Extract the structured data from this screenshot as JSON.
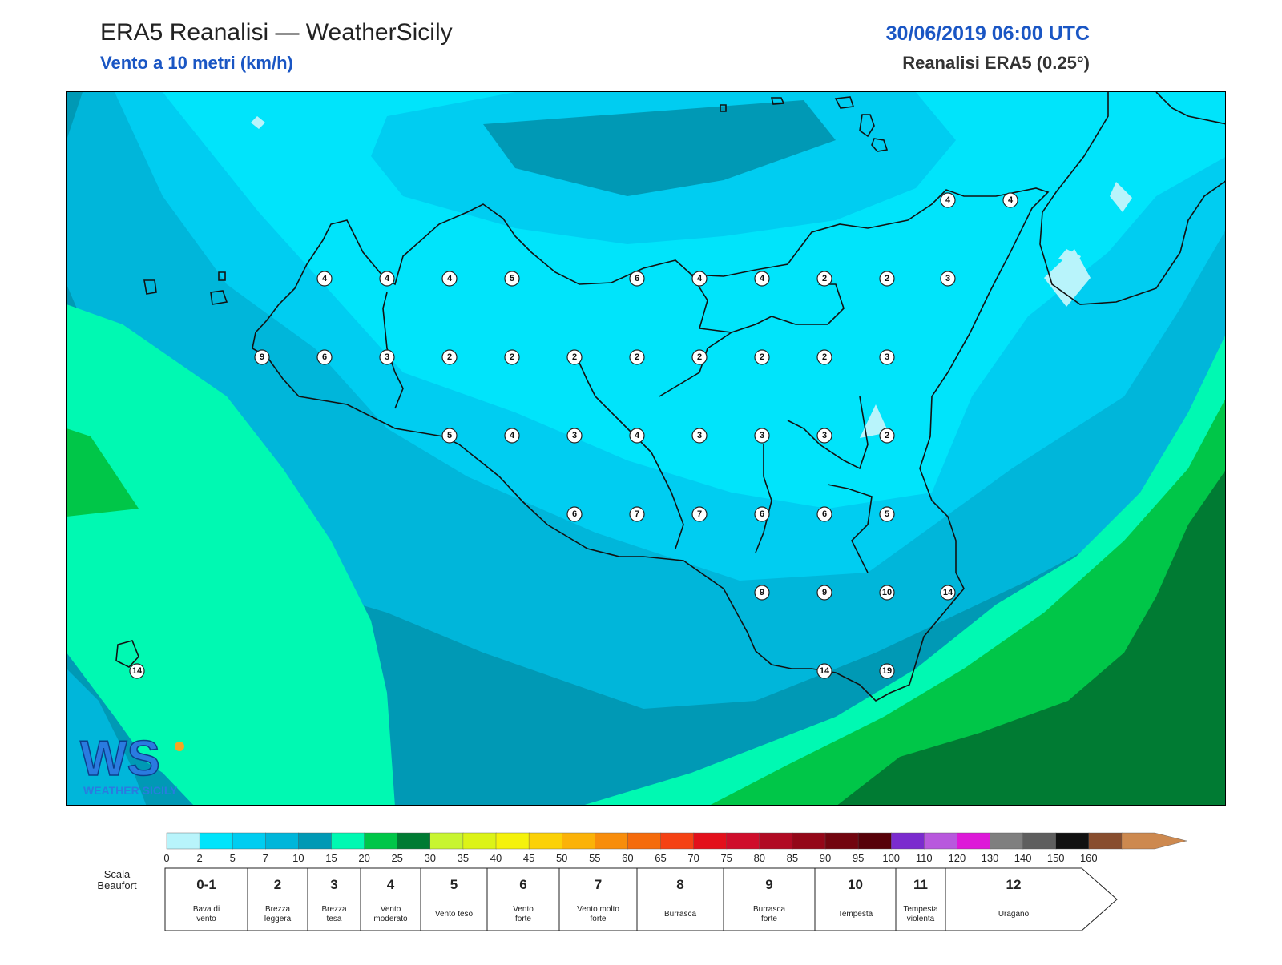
{
  "header": {
    "title": "ERA5 Reanalisi — WeatherSicily",
    "subtitle": "Vento a 10 metri (km/h)",
    "datetime": "30/06/2019 06:00 UTC",
    "model": "Reanalisi ERA5 (0.25°)"
  },
  "logo": {
    "text": "WS",
    "brand": "WEATHER SICILY"
  },
  "colors": {
    "c0": "#b8f4fb",
    "c2": "#00e4fb",
    "c5": "#00cdf1",
    "c7": "#00b6da",
    "c10": "#0099b5",
    "c15": "#00f9b2",
    "c20": "#00c648",
    "c25": "#007b33",
    "land": "#222222"
  },
  "station_values": [
    "4",
    "4",
    "4",
    "4",
    "4",
    "5",
    "6",
    "4",
    "4",
    "2",
    "2",
    "3",
    "9",
    "6",
    "3",
    "2",
    "2",
    "2",
    "2",
    "2",
    "2",
    "2",
    "3",
    "5",
    "4",
    "3",
    "4",
    "3",
    "3",
    "3",
    "2",
    "6",
    "7",
    "7",
    "6",
    "6",
    "5",
    "9",
    "9",
    "10",
    "14",
    "14",
    "14",
    "19"
  ],
  "legend": {
    "colors": [
      "#b8f4fb",
      "#00e4fb",
      "#00cdf1",
      "#00b6da",
      "#0099b5",
      "#00f9b2",
      "#00c648",
      "#007b33",
      "#c8f531",
      "#dcf317",
      "#f5f20c",
      "#fbd107",
      "#fbb208",
      "#f88d0b",
      "#f56b0c",
      "#f54214",
      "#e3101b",
      "#cf0d2b",
      "#b10a23",
      "#940718",
      "#72050f",
      "#570109",
      "#7b2bce",
      "#b858dd",
      "#dd19d8",
      "#7f7f7f",
      "#5e5e5e",
      "#111111",
      "#884d2e",
      "#cd894f"
    ],
    "ticks": [
      "0",
      "2",
      "5",
      "7",
      "10",
      "15",
      "20",
      "25",
      "30",
      "35",
      "40",
      "45",
      "50",
      "55",
      "60",
      "65",
      "70",
      "75",
      "80",
      "85",
      "90",
      "95",
      "100",
      "110",
      "120",
      "130",
      "140",
      "150",
      "160"
    ]
  },
  "beaufort": {
    "label_line1": "Scala",
    "label_line2": "Beaufort",
    "classes": [
      {
        "num": "0-1",
        "name1": "Bava di",
        "name2": "vento"
      },
      {
        "num": "2",
        "name1": "Brezza",
        "name2": "leggera"
      },
      {
        "num": "3",
        "name1": "Brezza",
        "name2": "tesa"
      },
      {
        "num": "4",
        "name1": "Vento",
        "name2": "moderato"
      },
      {
        "num": "5",
        "name1": "Vento teso",
        "name2": ""
      },
      {
        "num": "6",
        "name1": "Vento",
        "name2": "forte"
      },
      {
        "num": "7",
        "name1": "Vento molto",
        "name2": "forte"
      },
      {
        "num": "8",
        "name1": "Burrasca",
        "name2": ""
      },
      {
        "num": "9",
        "name1": "Burrasca",
        "name2": "forte"
      },
      {
        "num": "10",
        "name1": "Tempesta",
        "name2": ""
      },
      {
        "num": "11",
        "name1": "Tempesta",
        "name2": "violenta"
      },
      {
        "num": "12",
        "name1": "Uragano",
        "name2": ""
      }
    ]
  }
}
